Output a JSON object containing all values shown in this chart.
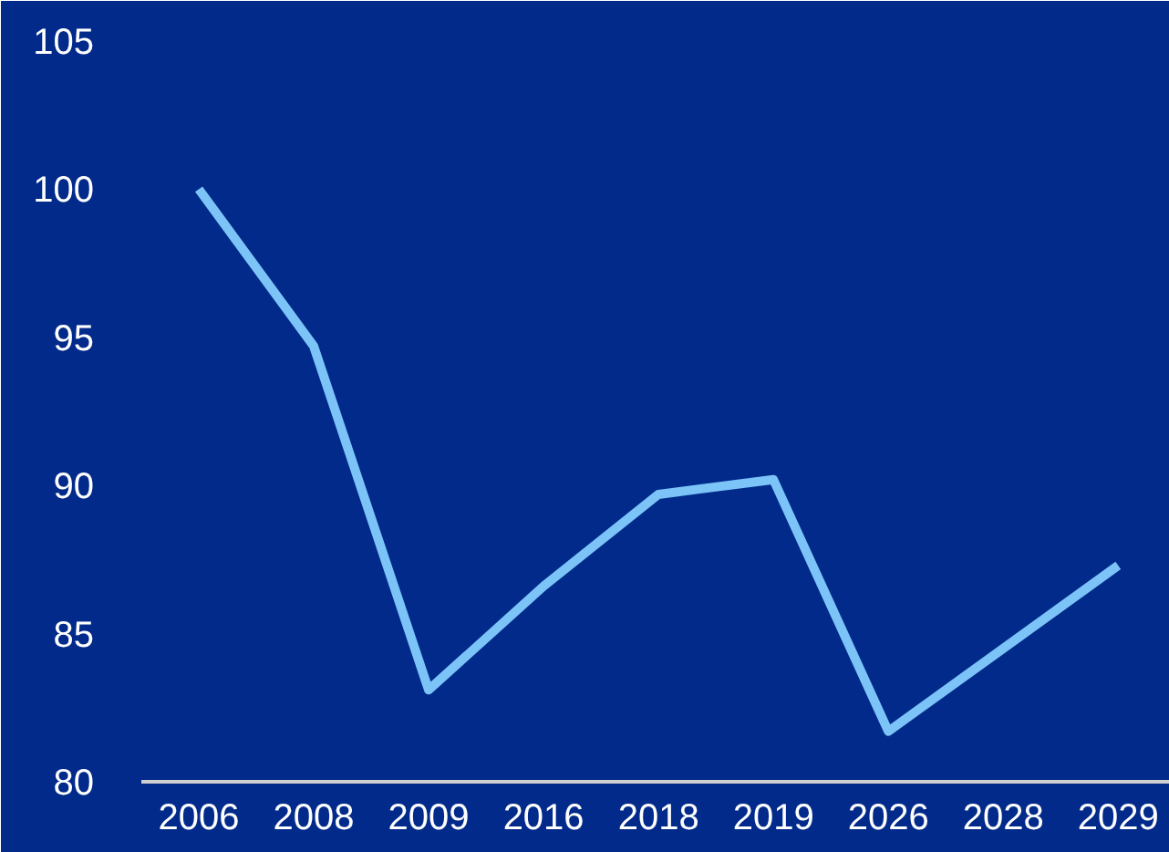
{
  "chart_data": {
    "type": "line",
    "categories": [
      "2006",
      "2008",
      "2009",
      "2016",
      "2018",
      "2019",
      "2026",
      "2028",
      "2029"
    ],
    "series": [
      {
        "color": "#7cc4f8",
        "values": [
          100,
          94.7,
          83.1,
          86.6,
          89.7,
          90.2,
          81.7,
          84.5,
          87.3
        ]
      }
    ],
    "ylim": [
      80,
      105
    ],
    "yticks": [
      80,
      85,
      90,
      95,
      100,
      105
    ],
    "grid": false,
    "marker": "none",
    "line_style": "solid"
  }
}
